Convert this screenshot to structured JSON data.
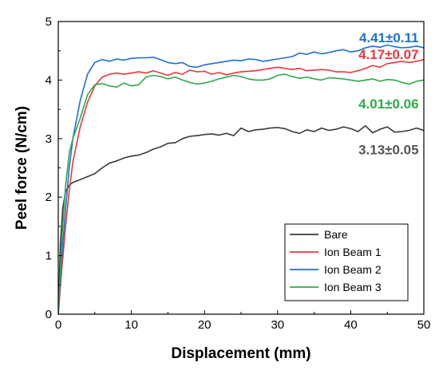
{
  "chart_data": {
    "type": "line",
    "xlabel": "Displacement (mm)",
    "ylabel": "Peel force (N/cm)",
    "xlim": [
      0,
      50
    ],
    "ylim": [
      0,
      5
    ],
    "xticks": [
      0,
      10,
      20,
      30,
      40,
      50
    ],
    "yticks": [
      0,
      1,
      2,
      3,
      4,
      5
    ],
    "grid": false,
    "legend_position": "bottom-right",
    "series": [
      {
        "name": "Bare",
        "color": "#3a3a3a",
        "x": [
          0,
          0.3,
          0.6,
          1,
          1.5,
          2,
          3,
          4,
          5,
          6,
          7,
          8,
          9,
          10,
          11,
          12,
          13,
          14,
          15,
          16,
          17,
          18,
          19,
          20,
          21,
          22,
          23,
          24,
          25,
          26,
          27,
          28,
          29,
          30,
          31,
          32,
          33,
          34,
          35,
          36,
          37,
          38,
          39,
          40,
          41,
          42,
          43,
          44,
          45,
          46,
          47,
          48,
          49,
          50
        ],
        "y": [
          0,
          1.2,
          1.8,
          2.1,
          2.2,
          2.25,
          2.3,
          2.35,
          2.4,
          2.5,
          2.58,
          2.62,
          2.67,
          2.7,
          2.72,
          2.76,
          2.82,
          2.86,
          2.92,
          2.93,
          3.0,
          3.04,
          3.05,
          3.07,
          3.08,
          3.06,
          3.09,
          3.05,
          3.18,
          3.12,
          3.15,
          3.16,
          3.18,
          3.19,
          3.17,
          3.12,
          3.09,
          3.15,
          3.12,
          3.18,
          3.14,
          3.16,
          3.2,
          3.17,
          3.12,
          3.22,
          3.1,
          3.16,
          3.2,
          3.11,
          3.12,
          3.14,
          3.18,
          3.14
        ]
      },
      {
        "name": "Ion Beam 1",
        "color": "#e8383b",
        "x": [
          0,
          0.5,
          1,
          1.5,
          2,
          3,
          4,
          5,
          6,
          7,
          8,
          9,
          10,
          11,
          12,
          13,
          14,
          15,
          16,
          17,
          18,
          19,
          20,
          21,
          22,
          23,
          24,
          25,
          26,
          27,
          28,
          29,
          30,
          31,
          32,
          33,
          34,
          35,
          36,
          37,
          38,
          39,
          40,
          41,
          42,
          43,
          44,
          45,
          46,
          47,
          48,
          49,
          50
        ],
        "y": [
          0,
          0.8,
          1.5,
          2.1,
          2.6,
          3.2,
          3.62,
          3.9,
          4.05,
          4.1,
          4.12,
          4.1,
          4.12,
          4.14,
          4.12,
          4.16,
          4.12,
          4.08,
          4.13,
          4.1,
          4.17,
          4.14,
          4.15,
          4.1,
          4.13,
          4.09,
          4.12,
          4.14,
          4.15,
          4.16,
          4.18,
          4.2,
          4.22,
          4.2,
          4.18,
          4.2,
          4.16,
          4.17,
          4.18,
          4.17,
          4.14,
          4.14,
          4.13,
          4.16,
          4.2,
          4.25,
          4.22,
          4.28,
          4.3,
          4.32,
          4.3,
          4.32,
          4.35
        ]
      },
      {
        "name": "Ion Beam 2",
        "color": "#1f6fd6",
        "x": [
          0,
          0.5,
          1,
          1.5,
          2,
          3,
          4,
          5,
          6,
          7,
          8,
          9,
          10,
          11,
          12,
          13,
          14,
          15,
          16,
          17,
          18,
          19,
          20,
          21,
          22,
          23,
          24,
          25,
          26,
          27,
          28,
          29,
          30,
          31,
          32,
          33,
          34,
          35,
          36,
          37,
          38,
          39,
          40,
          41,
          42,
          43,
          44,
          45,
          46,
          47,
          48,
          49,
          50
        ],
        "y": [
          0,
          1.0,
          1.8,
          2.5,
          3.0,
          3.65,
          4.1,
          4.3,
          4.35,
          4.32,
          4.36,
          4.34,
          4.37,
          4.38,
          4.38,
          4.39,
          4.35,
          4.3,
          4.28,
          4.3,
          4.23,
          4.22,
          4.26,
          4.28,
          4.3,
          4.32,
          4.34,
          4.33,
          4.36,
          4.35,
          4.32,
          4.34,
          4.36,
          4.38,
          4.4,
          4.46,
          4.44,
          4.48,
          4.45,
          4.47,
          4.5,
          4.52,
          4.48,
          4.5,
          4.55,
          4.58,
          4.56,
          4.6,
          4.57,
          4.55,
          4.56,
          4.58,
          4.55
        ]
      },
      {
        "name": "Ion Beam 3",
        "color": "#2eaa4c",
        "x": [
          0,
          0.5,
          1,
          1.5,
          2,
          3,
          4,
          5,
          6,
          7,
          8,
          9,
          10,
          11,
          12,
          13,
          14,
          15,
          16,
          17,
          18,
          19,
          20,
          21,
          22,
          23,
          24,
          25,
          26,
          27,
          28,
          29,
          30,
          31,
          32,
          33,
          34,
          35,
          36,
          37,
          38,
          39,
          40,
          41,
          42,
          43,
          44,
          45,
          46,
          47,
          48,
          49,
          50
        ],
        "y": [
          0,
          1.3,
          2.2,
          2.75,
          3.0,
          3.35,
          3.75,
          3.92,
          3.94,
          3.9,
          3.88,
          3.95,
          3.9,
          3.92,
          4.05,
          4.08,
          4.06,
          4.02,
          4.05,
          4.0,
          3.96,
          3.93,
          3.95,
          3.98,
          4.02,
          4.05,
          4.08,
          4.06,
          4.02,
          4.0,
          4.0,
          4.02,
          4.08,
          4.1,
          4.06,
          4.03,
          4.05,
          4.02,
          4.0,
          4.04,
          4.03,
          4.02,
          4.0,
          3.98,
          4.0,
          4.02,
          3.98,
          4.01,
          4.0,
          3.96,
          3.93,
          3.98,
          4.0
        ]
      }
    ],
    "annotations": [
      {
        "text": "4.41±0.11",
        "color": "#1f6fd6",
        "x": 49.3,
        "y": 4.73
      },
      {
        "text": "4.17±0.07",
        "color": "#e8383b",
        "x": 49.3,
        "y": 4.44
      },
      {
        "text": "4.01±0.06",
        "color": "#2eaa4c",
        "x": 49.3,
        "y": 3.6
      },
      {
        "text": "3.13±0.05",
        "color": "#555555",
        "x": 49.3,
        "y": 2.81
      }
    ]
  }
}
